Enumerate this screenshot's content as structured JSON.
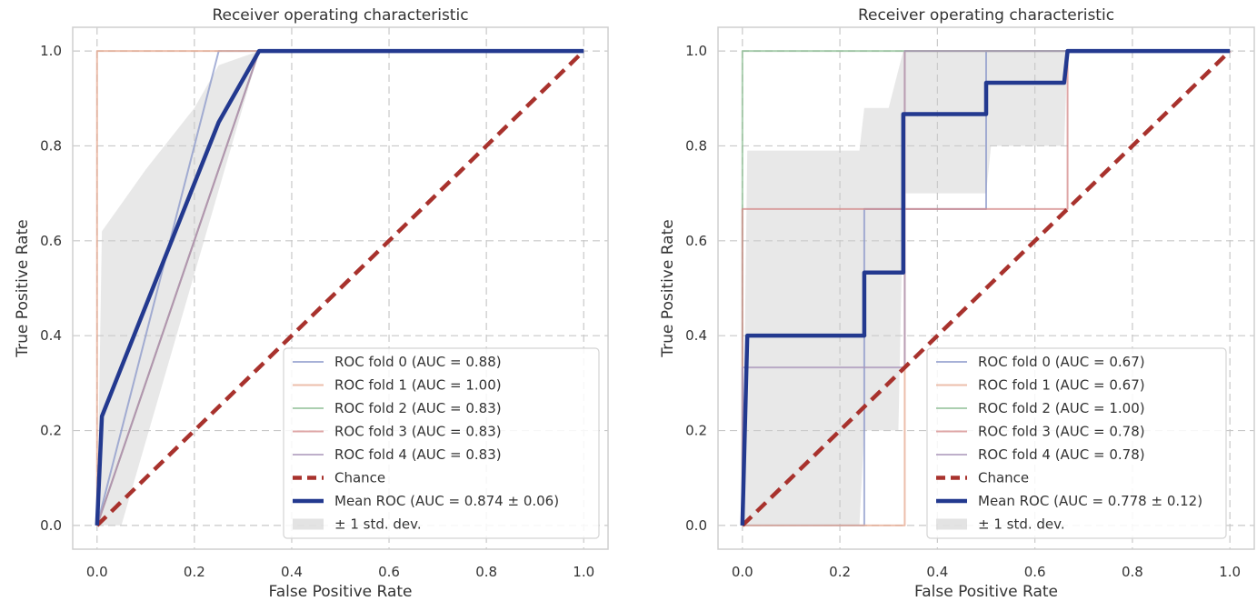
{
  "chart_data": [
    {
      "type": "line",
      "title": "Receiver operating characteristic",
      "xlabel": "False Positive Rate",
      "ylabel": "True Positive Rate",
      "xlim": [
        -0.05,
        1.05
      ],
      "ylim": [
        -0.05,
        1.05
      ],
      "xticks": [
        0.0,
        0.2,
        0.4,
        0.6,
        0.8,
        1.0
      ],
      "yticks": [
        0.0,
        0.2,
        0.4,
        0.6,
        0.8,
        1.0
      ],
      "tick_labels": [
        "0.0",
        "0.2",
        "0.4",
        "0.6",
        "0.8",
        "1.0"
      ],
      "grid": true,
      "legend_position": "lower-right",
      "series": [
        {
          "name": "ROC fold 0 (AUC = 0.88)",
          "color": "#8a97c9",
          "x": [
            0,
            0.25,
            0.333,
            1
          ],
          "y": [
            0,
            1,
            1,
            1
          ]
        },
        {
          "name": "ROC fold 1 (AUC = 1.00)",
          "color": "#e6a88f",
          "x": [
            0,
            0,
            1
          ],
          "y": [
            0,
            1,
            1
          ]
        },
        {
          "name": "ROC fold 2 (AUC = 0.83)",
          "color": "#8fbf96",
          "x": [
            0,
            0.333,
            1
          ],
          "y": [
            0,
            1,
            1
          ]
        },
        {
          "name": "ROC fold 3 (AUC = 0.83)",
          "color": "#d48a8a",
          "x": [
            0,
            0.333,
            1
          ],
          "y": [
            0,
            1,
            1
          ]
        },
        {
          "name": "ROC fold 4 (AUC = 0.83)",
          "color": "#a894b8",
          "x": [
            0,
            0.333,
            1
          ],
          "y": [
            0,
            1,
            1
          ]
        },
        {
          "name": "Chance",
          "color": "#a8322d",
          "dashed": true,
          "x": [
            0,
            1
          ],
          "y": [
            0,
            1
          ]
        },
        {
          "name": "Mean ROC (AUC = 0.874 ± 0.06)",
          "color": "#23398f",
          "x": [
            0,
            0.01,
            0.25,
            0.333,
            1
          ],
          "y": [
            0,
            0.23,
            0.85,
            1,
            1
          ]
        }
      ],
      "band": {
        "name": "± 1 std. dev.",
        "color": "#cccccc",
        "upper": {
          "x": [
            0,
            0.01,
            0.1,
            0.2,
            0.25,
            0.333,
            1
          ],
          "y": [
            0,
            0.62,
            0.75,
            0.88,
            0.97,
            1,
            1
          ]
        },
        "lower": {
          "x": [
            0,
            0.05,
            0.333,
            1
          ],
          "y": [
            0,
            0,
            1,
            1
          ]
        }
      }
    },
    {
      "type": "line",
      "title": "Receiver operating characteristic",
      "xlabel": "False Positive Rate",
      "ylabel": "True Positive Rate",
      "xlim": [
        -0.05,
        1.05
      ],
      "ylim": [
        -0.05,
        1.05
      ],
      "xticks": [
        0.0,
        0.2,
        0.4,
        0.6,
        0.8,
        1.0
      ],
      "yticks": [
        0.0,
        0.2,
        0.4,
        0.6,
        0.8,
        1.0
      ],
      "tick_labels": [
        "0.0",
        "0.2",
        "0.4",
        "0.6",
        "0.8",
        "1.0"
      ],
      "grid": true,
      "legend_position": "lower-right",
      "series": [
        {
          "name": "ROC fold 0 (AUC = 0.67)",
          "color": "#8a97c9",
          "x": [
            0,
            0.25,
            0.25,
            0.5,
            0.5,
            1
          ],
          "y": [
            0,
            0,
            0.667,
            0.667,
            1,
            1
          ]
        },
        {
          "name": "ROC fold 1 (AUC = 0.67)",
          "color": "#e6a88f",
          "x": [
            0,
            0.333,
            0.333,
            1
          ],
          "y": [
            0,
            0,
            1,
            1
          ]
        },
        {
          "name": "ROC fold 2 (AUC = 1.00)",
          "color": "#8fbf96",
          "x": [
            0,
            0,
            1
          ],
          "y": [
            0,
            1,
            1
          ]
        },
        {
          "name": "ROC fold 3 (AUC = 0.78)",
          "color": "#d48a8a",
          "x": [
            0,
            0,
            0.667,
            0.667,
            1
          ],
          "y": [
            0,
            0.667,
            0.667,
            1,
            1
          ]
        },
        {
          "name": "ROC fold 4 (AUC = 0.78)",
          "color": "#a894b8",
          "x": [
            0,
            0,
            0.333,
            0.333,
            1
          ],
          "y": [
            0,
            0.333,
            0.333,
            1,
            1
          ]
        },
        {
          "name": "Chance",
          "color": "#a8322d",
          "dashed": true,
          "x": [
            0,
            1
          ],
          "y": [
            0,
            1
          ]
        },
        {
          "name": "Mean ROC (AUC = 0.778 ± 0.12)",
          "color": "#23398f",
          "x": [
            0,
            0.01,
            0.25,
            0.25,
            0.27,
            0.27,
            0.33,
            0.33,
            0.5,
            0.5,
            0.66,
            0.667,
            1
          ],
          "y": [
            0,
            0.4,
            0.4,
            0.533,
            0.533,
            0.533,
            0.533,
            0.867,
            0.867,
            0.933,
            0.933,
            1,
            1
          ]
        }
      ],
      "band": {
        "name": "± 1 std. dev.",
        "color": "#cccccc",
        "upper": {
          "x": [
            0,
            0.01,
            0.24,
            0.25,
            0.3,
            0.33,
            0.35,
            0.5,
            1
          ],
          "y": [
            0,
            0.79,
            0.79,
            0.88,
            0.88,
            1,
            1,
            1,
            1
          ]
        },
        "lower": {
          "x": [
            0,
            0.24,
            0.25,
            0.32,
            0.33,
            0.5,
            0.51,
            0.66,
            0.667,
            1
          ],
          "y": [
            0,
            0,
            0.2,
            0.2,
            0.7,
            0.7,
            0.8,
            0.8,
            1,
            1
          ]
        }
      }
    }
  ]
}
